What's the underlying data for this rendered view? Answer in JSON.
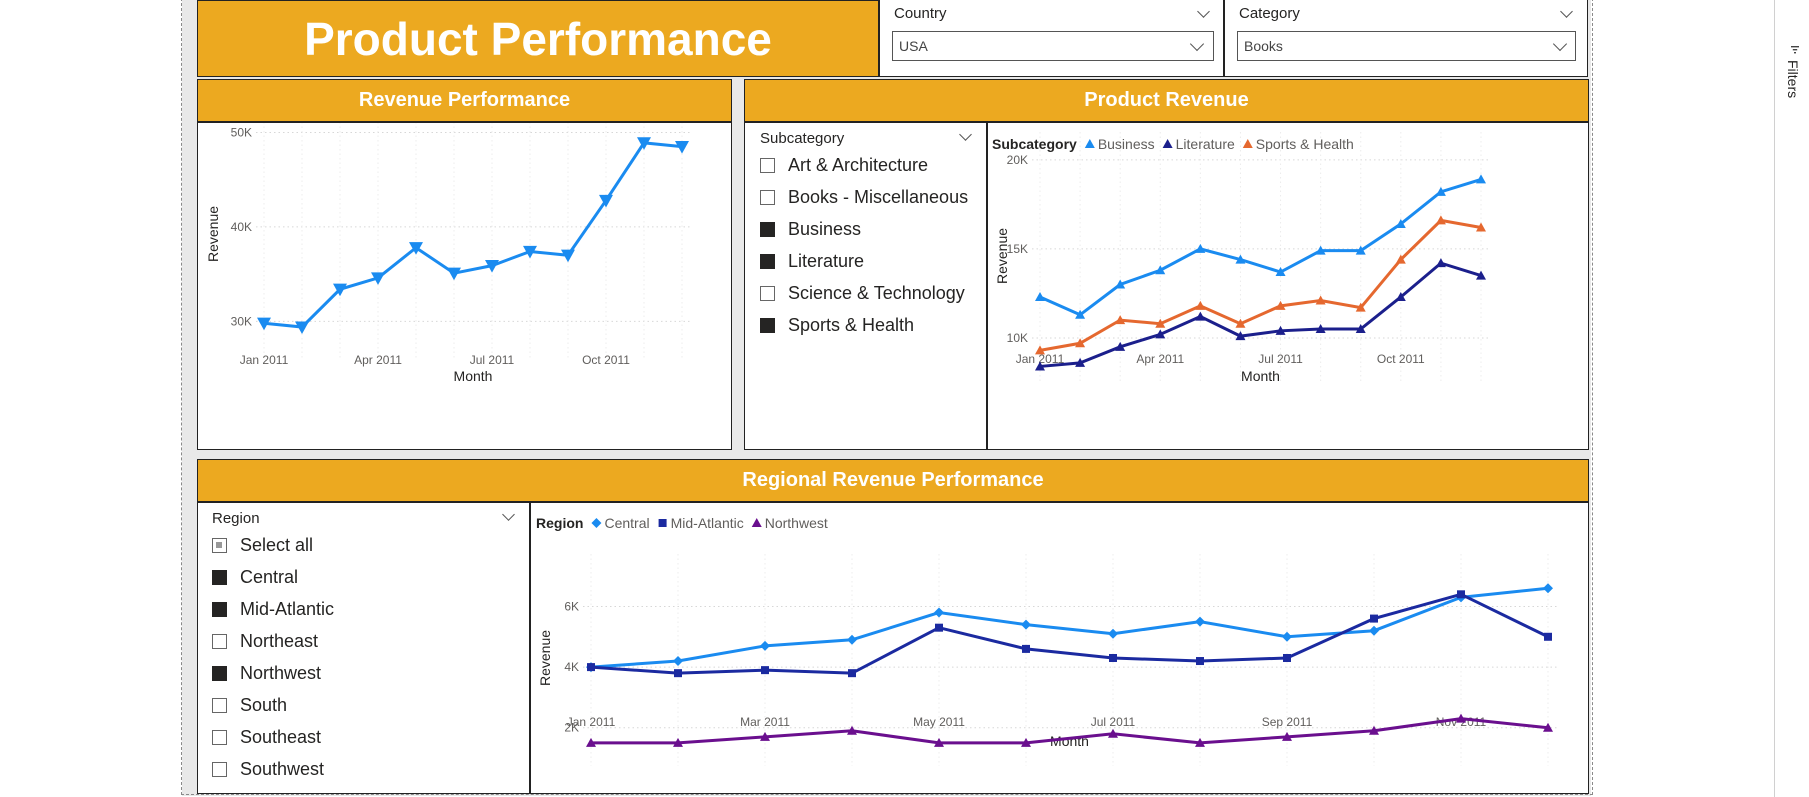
{
  "header": {
    "title": "Product Performance"
  },
  "filters": {
    "country": {
      "label": "Country",
      "value": "USA"
    },
    "category": {
      "label": "Category",
      "value": "Books"
    }
  },
  "filters_pane": {
    "label": "Filters"
  },
  "revenue_tile": {
    "title": "Revenue Performance"
  },
  "product_tile": {
    "title": "Product Revenue"
  },
  "regional_tile": {
    "title": "Regional Revenue Performance"
  },
  "subcategory_slicer": {
    "title": "Subcategory",
    "items": [
      {
        "label": "Art & Architecture",
        "checked": false
      },
      {
        "label": "Books - Miscellaneous",
        "checked": false
      },
      {
        "label": "Business",
        "checked": true
      },
      {
        "label": "Literature",
        "checked": true
      },
      {
        "label": "Science & Technology",
        "checked": false
      },
      {
        "label": "Sports & Health",
        "checked": true
      }
    ]
  },
  "region_slicer": {
    "title": "Region",
    "items": [
      {
        "label": "Select all",
        "checked": "partial"
      },
      {
        "label": "Central",
        "checked": true
      },
      {
        "label": "Mid-Atlantic",
        "checked": true
      },
      {
        "label": "Northeast",
        "checked": false
      },
      {
        "label": "Northwest",
        "checked": true
      },
      {
        "label": "South",
        "checked": false
      },
      {
        "label": "Southeast",
        "checked": false
      },
      {
        "label": "Southwest",
        "checked": false
      }
    ]
  },
  "chart_data": [
    {
      "id": "revenue",
      "type": "line",
      "xlabel": "Month",
      "ylabel": "Revenue",
      "ylim": [
        27500,
        51000
      ],
      "yticks": [
        30000,
        40000,
        50000
      ],
      "ytick_labels": [
        "30K",
        "40K",
        "50K"
      ],
      "categories": [
        "Jan 2011",
        "Feb 2011",
        "Mar 2011",
        "Apr 2011",
        "May 2011",
        "Jun 2011",
        "Jul 2011",
        "Aug 2011",
        "Sep 2011",
        "Oct 2011",
        "Nov 2011",
        "Dec 2011"
      ],
      "xtick_labels": [
        "Jan 2011",
        "Apr 2011",
        "Jul 2011",
        "Oct 2011"
      ],
      "xtick_index": [
        0,
        3,
        6,
        9
      ],
      "grid": true,
      "series": [
        {
          "values": [
            29800,
            29400,
            33400,
            34600,
            37800,
            35100,
            35900,
            37400,
            37000,
            42800,
            48900,
            48500
          ],
          "color": "#1a8bf0",
          "marker": "triangle-down"
        }
      ]
    },
    {
      "id": "product",
      "type": "line",
      "xlabel": "Month",
      "ylabel": "Revenue",
      "legend_title": "Subcategory",
      "ylim": [
        8200,
        21000
      ],
      "yticks": [
        10000,
        15000,
        20000
      ],
      "ytick_labels": [
        "10K",
        "15K",
        "20K"
      ],
      "categories": [
        "Jan 2011",
        "Feb 2011",
        "Mar 2011",
        "Apr 2011",
        "May 2011",
        "Jun 2011",
        "Jul 2011",
        "Aug 2011",
        "Sep 2011",
        "Oct 2011",
        "Nov 2011",
        "Dec 2011"
      ],
      "xtick_labels": [
        "Jan 2011",
        "Apr 2011",
        "Jul 2011",
        "Oct 2011"
      ],
      "xtick_index": [
        0,
        3,
        6,
        9
      ],
      "grid": true,
      "legend": "top-left",
      "series": [
        {
          "name": "Business",
          "values": [
            12300,
            11300,
            13000,
            13800,
            15000,
            14400,
            13700,
            14900,
            14900,
            16400,
            18200,
            18900
          ],
          "color": "#1a8bf0",
          "marker": "triangle"
        },
        {
          "name": "Literature",
          "values": [
            8400,
            8600,
            9500,
            10200,
            11200,
            10100,
            10400,
            10500,
            10500,
            12300,
            14200,
            13500
          ],
          "color": "#1b1f8c",
          "marker": "triangle"
        },
        {
          "name": "Sports & Health",
          "values": [
            9300,
            9700,
            11000,
            10800,
            11800,
            10800,
            11800,
            12100,
            11700,
            14400,
            16600,
            16200
          ],
          "color": "#e5682f",
          "marker": "triangle"
        }
      ]
    },
    {
      "id": "regional",
      "type": "line",
      "xlabel": "Month",
      "ylabel": "Revenue",
      "legend_title": "Region",
      "ylim": [
        1200,
        7400
      ],
      "yticks": [
        2000,
        4000,
        6000
      ],
      "ytick_labels": [
        "2K",
        "4K",
        "6K"
      ],
      "categories": [
        "Jan 2011",
        "Feb 2011",
        "Mar 2011",
        "Apr 2011",
        "May 2011",
        "Jun 2011",
        "Jul 2011",
        "Aug 2011",
        "Sep 2011",
        "Oct 2011",
        "Nov 2011",
        "Dec 2011"
      ],
      "xtick_labels": [
        "Jan 2011",
        "Mar 2011",
        "May 2011",
        "Jul 2011",
        "Sep 2011",
        "Nov 2011"
      ],
      "xtick_index": [
        0,
        2,
        4,
        6,
        8,
        10
      ],
      "grid": true,
      "legend": "top-left",
      "series": [
        {
          "name": "Central",
          "values": [
            4000,
            4200,
            4700,
            4900,
            5800,
            5400,
            5100,
            5500,
            5000,
            5200,
            6300,
            6600
          ],
          "color": "#1a8bf0",
          "marker": "diamond"
        },
        {
          "name": "Mid-Atlantic",
          "values": [
            4000,
            3800,
            3900,
            3800,
            5300,
            4600,
            4300,
            4200,
            4300,
            5600,
            6400,
            5000
          ],
          "color": "#1b2aa0",
          "marker": "square"
        },
        {
          "name": "Northwest",
          "values": [
            1500,
            1500,
            1700,
            1900,
            1500,
            1500,
            1800,
            1500,
            1700,
            1900,
            2300,
            2000
          ],
          "color": "#6a0f8e",
          "marker": "triangle"
        }
      ]
    }
  ]
}
